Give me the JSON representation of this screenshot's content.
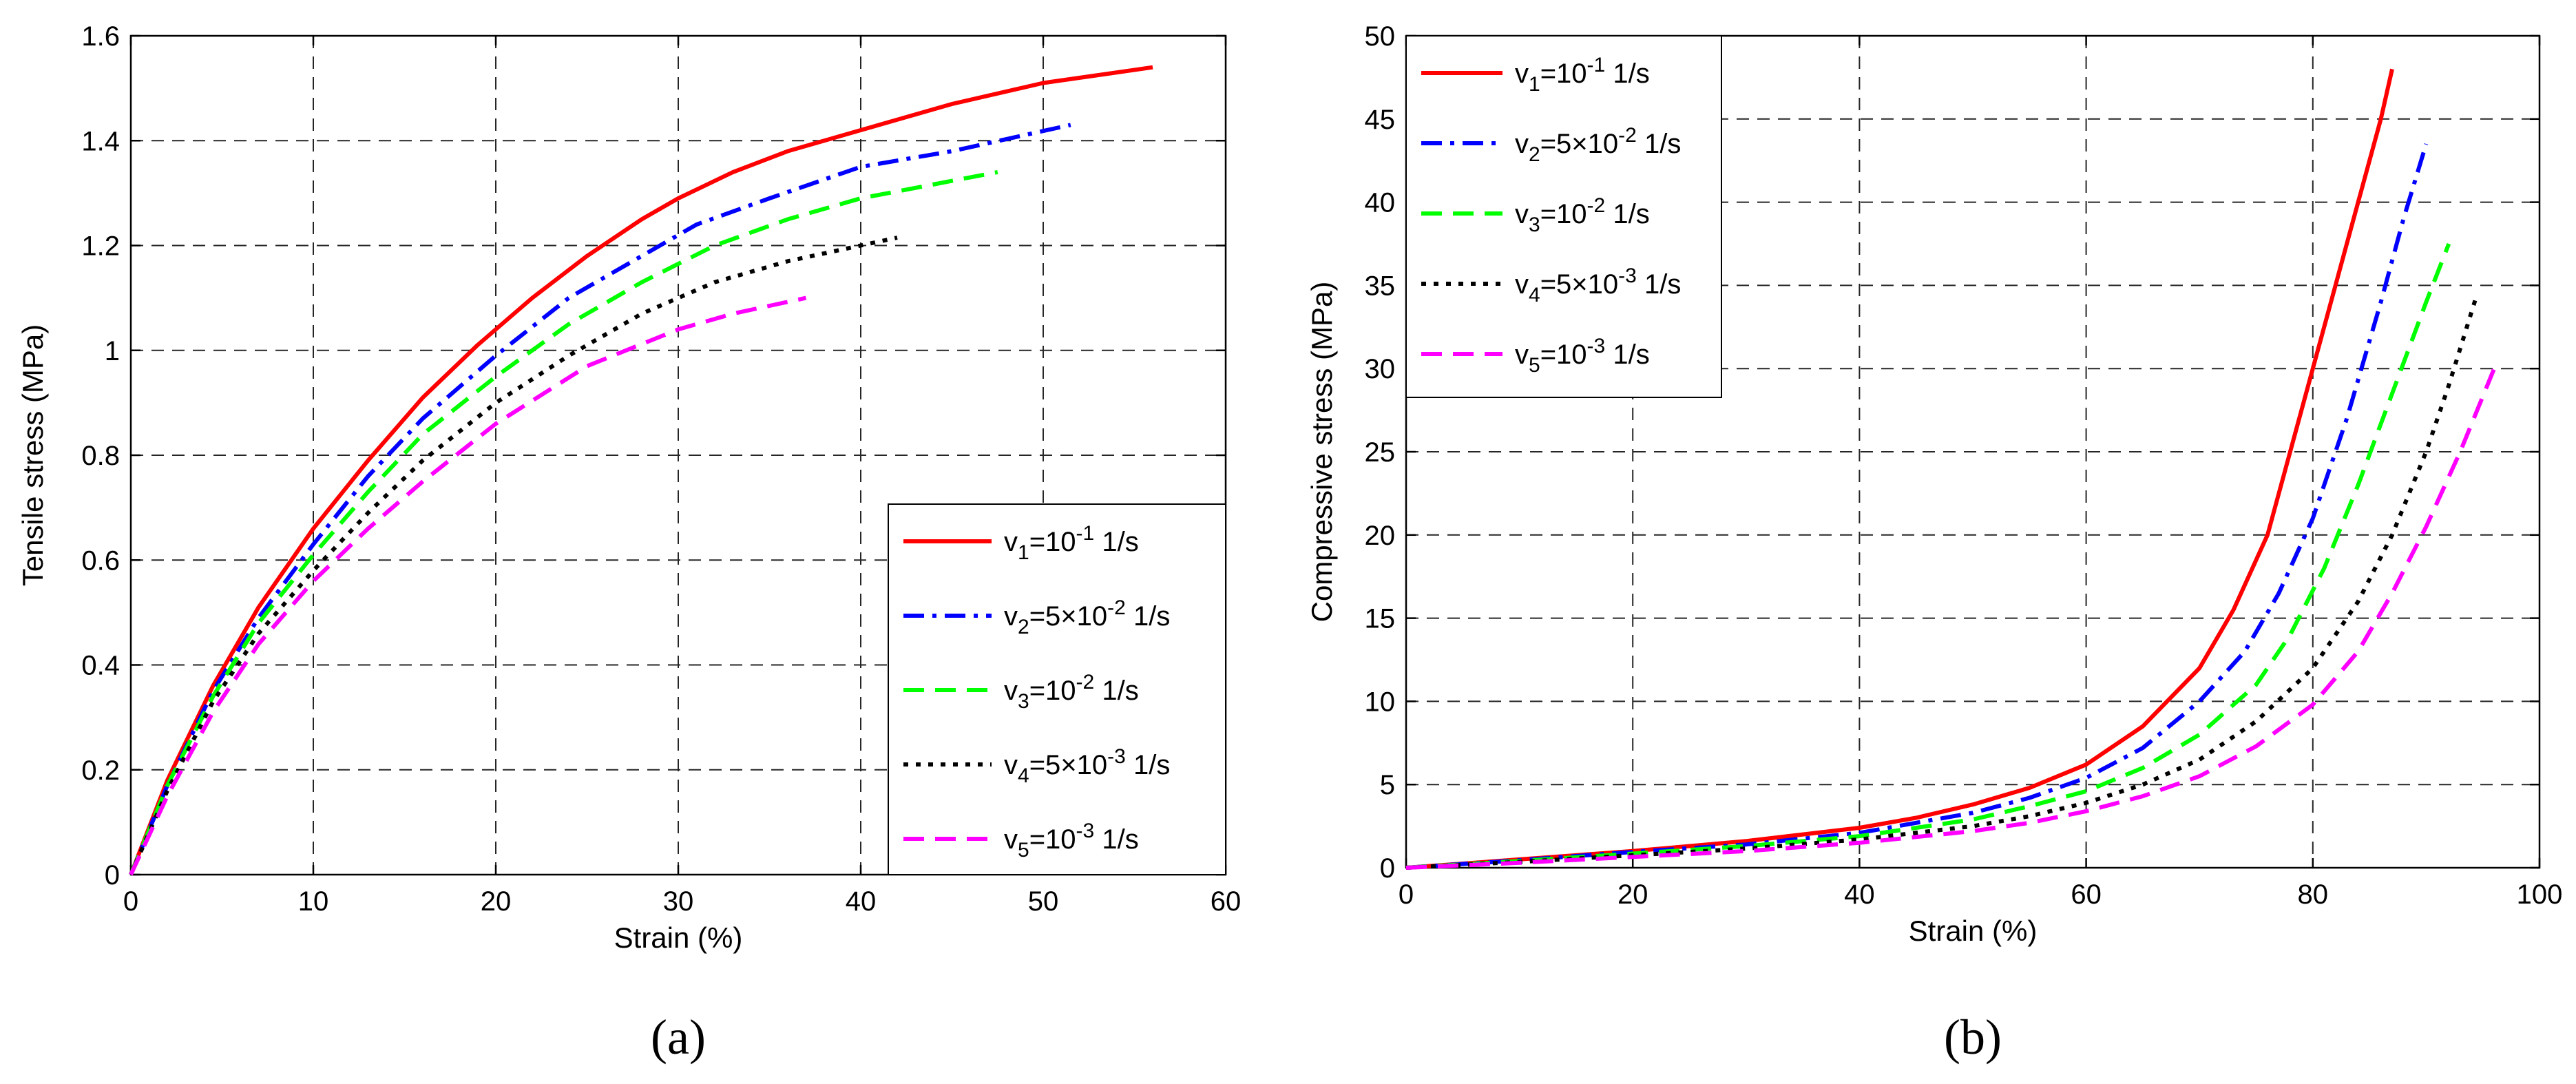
{
  "chart_data": [
    {
      "type": "line",
      "panel_label": "(a)",
      "xlabel": "Strain (%)",
      "ylabel": "Tensile stress (MPa)",
      "xlim": [
        0,
        60
      ],
      "ylim": [
        0,
        1.6
      ],
      "xticks": [
        0,
        10,
        20,
        30,
        40,
        50,
        60
      ],
      "xtick_labels": [
        "0",
        "10",
        "20",
        "30",
        "40",
        "50",
        "60"
      ],
      "yticks": [
        0,
        0.2,
        0.4,
        0.6,
        0.8,
        1.0,
        1.2,
        1.4,
        1.6
      ],
      "ytick_labels": [
        "0",
        "0.2",
        "0.4",
        "0.6",
        "0.8",
        "1",
        "1.2",
        "1.4",
        "1.6"
      ],
      "grid": true,
      "legend_position": "bottom-right",
      "series": [
        {
          "name": "v1=10^-1 1/s",
          "label_base": "v",
          "label_sub": "1",
          "label_mid": "=10",
          "label_sup": "-1",
          "label_tail": " 1/s",
          "color": "#ff0000",
          "style": "solid",
          "x": [
            0,
            2,
            4.5,
            7,
            10,
            13,
            16,
            19,
            22,
            25,
            28,
            30,
            33,
            36,
            40,
            45,
            50,
            53,
            56
          ],
          "y": [
            0,
            0.18,
            0.36,
            0.51,
            0.66,
            0.79,
            0.91,
            1.01,
            1.1,
            1.18,
            1.25,
            1.29,
            1.34,
            1.38,
            1.42,
            1.47,
            1.51,
            1.525,
            1.54
          ]
        },
        {
          "name": "v2=5×10^-2 1/s",
          "label_base": "v",
          "label_sub": "2",
          "label_mid": "=5×10",
          "label_sup": "-2",
          "label_tail": " 1/s",
          "color": "#0000ff",
          "style": "dashdot",
          "x": [
            0,
            2,
            4.5,
            7,
            10,
            13,
            16,
            20,
            24,
            28,
            31,
            35,
            40,
            45,
            51.5
          ],
          "y": [
            0,
            0.17,
            0.35,
            0.49,
            0.63,
            0.76,
            0.87,
            0.99,
            1.1,
            1.18,
            1.24,
            1.29,
            1.35,
            1.38,
            1.43
          ]
        },
        {
          "name": "v3=10^-2 1/s",
          "label_base": "v",
          "label_sub": "3",
          "label_mid": "=10",
          "label_sup": "-2",
          "label_tail": " 1/s",
          "color": "#00ff00",
          "style": "dash",
          "x": [
            0,
            2,
            4.5,
            7,
            10,
            13,
            16,
            20,
            24,
            28,
            32,
            36,
            40,
            43,
            47.5
          ],
          "y": [
            0,
            0.17,
            0.34,
            0.48,
            0.61,
            0.73,
            0.84,
            0.95,
            1.05,
            1.13,
            1.2,
            1.25,
            1.29,
            1.31,
            1.34
          ]
        },
        {
          "name": "v4=5×10^-3 1/s",
          "label_base": "v",
          "label_sub": "4",
          "label_mid": "=5×10",
          "label_sup": "-3",
          "label_tail": " 1/s",
          "color": "#000000",
          "style": "dot",
          "x": [
            0,
            2,
            4.5,
            7,
            10,
            13,
            16,
            20,
            24,
            28,
            32,
            36,
            40,
            42
          ],
          "y": [
            0,
            0.16,
            0.33,
            0.46,
            0.58,
            0.69,
            0.79,
            0.9,
            0.99,
            1.07,
            1.13,
            1.17,
            1.2,
            1.215
          ]
        },
        {
          "name": "v5=10^-3 1/s",
          "label_base": "v",
          "label_sub": "5",
          "label_mid": "=10",
          "label_sup": "-3",
          "label_tail": " 1/s",
          "color": "#ff00ff",
          "style": "dash",
          "x": [
            0,
            2,
            4.5,
            7,
            10,
            13,
            16,
            20,
            25,
            30,
            33,
            37
          ],
          "y": [
            0,
            0.15,
            0.31,
            0.44,
            0.56,
            0.66,
            0.75,
            0.86,
            0.97,
            1.04,
            1.07,
            1.1
          ]
        }
      ]
    },
    {
      "type": "line",
      "panel_label": "(b)",
      "xlabel": "Strain (%)",
      "ylabel": "Compressive stress (MPa)",
      "xlim": [
        0,
        100
      ],
      "ylim": [
        0,
        50
      ],
      "xticks": [
        0,
        20,
        40,
        60,
        80,
        100
      ],
      "xtick_labels": [
        "0",
        "20",
        "40",
        "60",
        "80",
        "100"
      ],
      "yticks": [
        0,
        5,
        10,
        15,
        20,
        25,
        30,
        35,
        40,
        45,
        50
      ],
      "ytick_labels": [
        "0",
        "5",
        "10",
        "15",
        "20",
        "25",
        "30",
        "35",
        "40",
        "45",
        "50"
      ],
      "grid": true,
      "legend_position": "top-left",
      "series": [
        {
          "name": "v1=10^-1 1/s",
          "label_base": "v",
          "label_sub": "1",
          "label_mid": "=10",
          "label_sup": "-1",
          "label_tail": " 1/s",
          "color": "#ff0000",
          "style": "solid",
          "x": [
            0,
            10,
            20,
            30,
            40,
            45,
            50,
            55,
            60,
            65,
            70,
            73,
            76,
            78,
            80,
            82,
            84,
            86,
            87
          ],
          "y": [
            0,
            0.5,
            1.0,
            1.6,
            2.4,
            3.0,
            3.8,
            4.8,
            6.2,
            8.5,
            12.0,
            15.5,
            20.0,
            25.0,
            30.0,
            35.0,
            40.0,
            45.0,
            48.0
          ]
        },
        {
          "name": "v2=5×10^-2 1/s",
          "label_base": "v",
          "label_sub": "2",
          "label_mid": "=5×10",
          "label_sup": "-2",
          "label_tail": " 1/s",
          "color": "#0000ff",
          "style": "dashdot",
          "x": [
            0,
            10,
            20,
            30,
            40,
            50,
            55,
            60,
            65,
            70,
            74,
            77,
            80,
            83,
            86,
            88,
            90
          ],
          "y": [
            0,
            0.45,
            0.95,
            1.4,
            2.1,
            3.3,
            4.2,
            5.4,
            7.2,
            10.0,
            13.0,
            16.5,
            21.0,
            27.0,
            34.0,
            39.0,
            43.5
          ]
        },
        {
          "name": "v3=10^-2 1/s",
          "label_base": "v",
          "label_sub": "3",
          "label_mid": "=10",
          "label_sup": "-2",
          "label_tail": " 1/s",
          "color": "#00ff00",
          "style": "dash",
          "x": [
            0,
            10,
            20,
            30,
            40,
            50,
            55,
            60,
            65,
            70,
            75,
            78,
            81,
            84,
            87,
            90,
            92
          ],
          "y": [
            0,
            0.4,
            0.85,
            1.3,
            1.9,
            2.9,
            3.7,
            4.6,
            6.0,
            8.0,
            11.0,
            14.0,
            18.0,
            23.0,
            28.5,
            34.0,
            37.5
          ]
        },
        {
          "name": "v4=5×10^-3 1/s",
          "label_base": "v",
          "label_sub": "4",
          "label_mid": "=5×10",
          "label_sup": "-3",
          "label_tail": " 1/s",
          "color": "#000000",
          "style": "dot",
          "x": [
            0,
            10,
            20,
            30,
            40,
            50,
            55,
            60,
            65,
            70,
            75,
            80,
            84,
            87,
            90,
            92,
            94.5
          ],
          "y": [
            0,
            0.35,
            0.75,
            1.15,
            1.7,
            2.5,
            3.1,
            3.9,
            5.0,
            6.5,
            8.8,
            12.0,
            16.0,
            20.0,
            25.0,
            29.0,
            34.5
          ]
        },
        {
          "name": "v5=10^-3 1/s",
          "label_base": "v",
          "label_sub": "5",
          "label_mid": "=10",
          "label_sup": "-3",
          "label_tail": " 1/s",
          "color": "#ff00ff",
          "style": "dash",
          "x": [
            0,
            10,
            20,
            30,
            40,
            50,
            55,
            60,
            65,
            70,
            75,
            80,
            84,
            87,
            90,
            93,
            96
          ],
          "y": [
            0,
            0.3,
            0.65,
            1.0,
            1.5,
            2.2,
            2.7,
            3.4,
            4.3,
            5.5,
            7.3,
            9.8,
            13.0,
            16.5,
            20.5,
            25.0,
            30.0
          ]
        }
      ]
    }
  ]
}
